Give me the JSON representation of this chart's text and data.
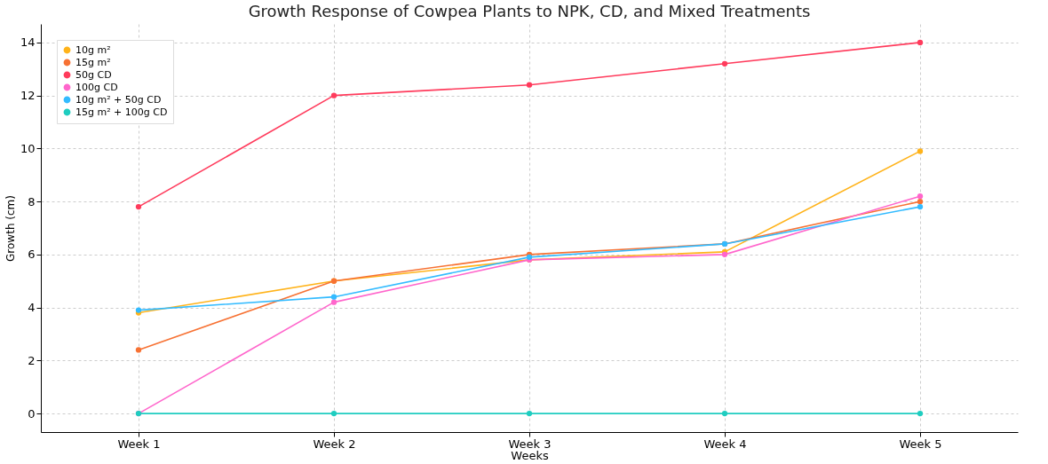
{
  "chart_data": {
    "type": "line",
    "title": "Growth Response of Cowpea Plants to NPK, CD, and Mixed Treatments",
    "xlabel": "Weeks",
    "ylabel": "Growth (cm)",
    "categories": [
      "Week 1",
      "Week 2",
      "Week 3",
      "Week 4",
      "Week 5"
    ],
    "series": [
      {
        "name": "10g m²",
        "color": "#ffb31a",
        "values": [
          3.8,
          5.0,
          5.8,
          6.1,
          9.9
        ]
      },
      {
        "name": "15g m²",
        "color": "#f77234",
        "values": [
          2.4,
          5.0,
          6.0,
          6.4,
          8.0
        ]
      },
      {
        "name": "50g CD",
        "color": "#ff3b5c",
        "values": [
          7.8,
          12.0,
          12.4,
          13.2,
          14.0
        ]
      },
      {
        "name": "100g CD",
        "color": "#ff66cc",
        "values": [
          0,
          4.2,
          5.8,
          6.0,
          8.2
        ]
      },
      {
        "name": "10g m² + 50g CD",
        "color": "#33bbff",
        "values": [
          3.9,
          4.4,
          5.9,
          6.4,
          7.8
        ]
      },
      {
        "name": "15g m² + 100g CD",
        "color": "#1fcdc0",
        "values": [
          0,
          0,
          0,
          0,
          0
        ]
      }
    ],
    "ylim": [
      -0.7,
      14.7
    ],
    "yticks": [
      0,
      2,
      4,
      6,
      8,
      10,
      12,
      14
    ],
    "grid": true,
    "legend": "top left",
    "marker": "circle",
    "line_style": "solid"
  }
}
